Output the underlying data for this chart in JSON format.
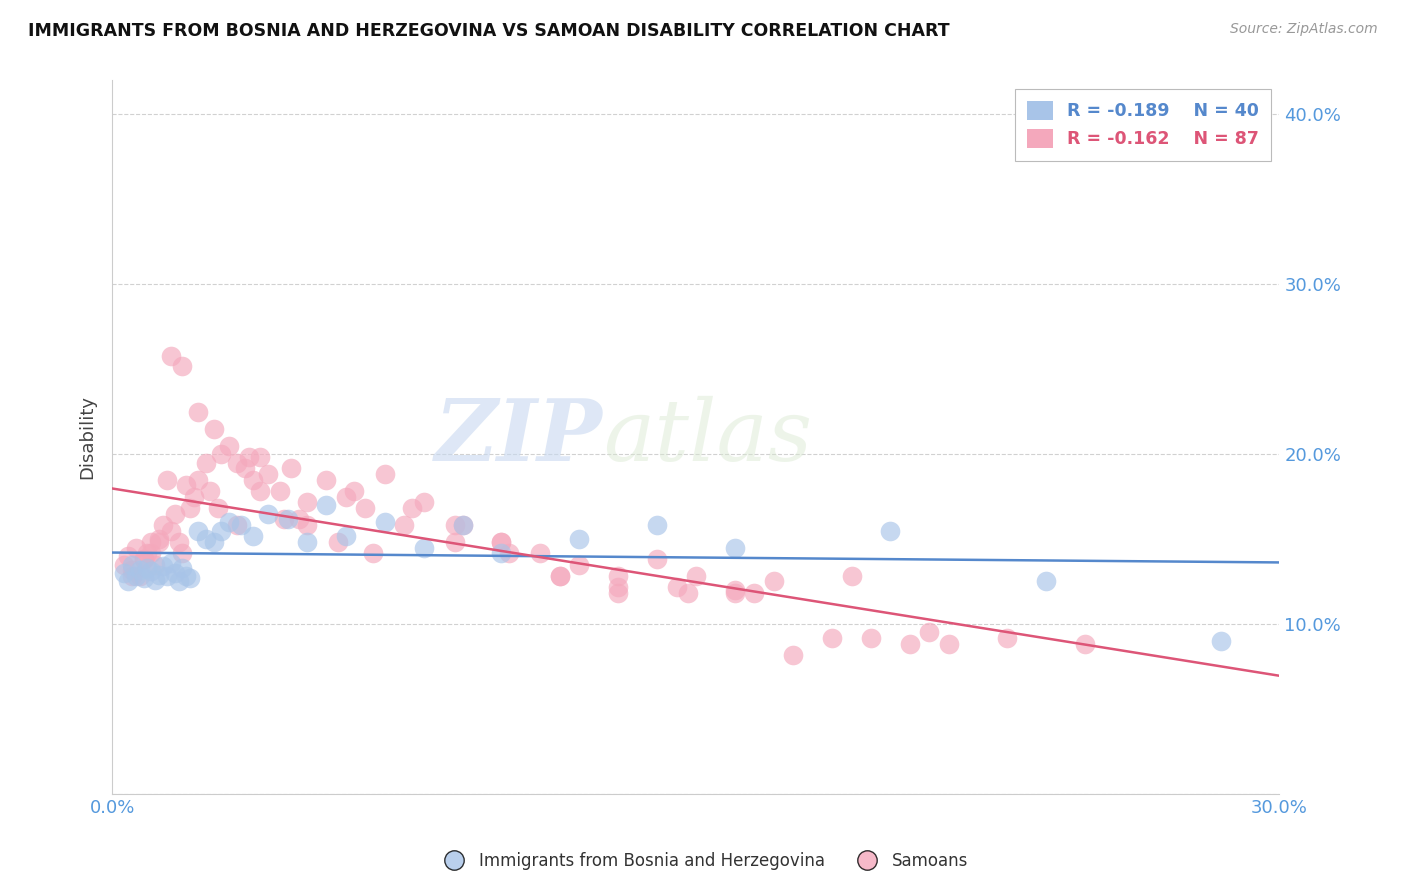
{
  "title": "IMMIGRANTS FROM BOSNIA AND HERZEGOVINA VS SAMOAN DISABILITY CORRELATION CHART",
  "source": "Source: ZipAtlas.com",
  "ylabel": "Disability",
  "xlim": [
    0.0,
    0.3
  ],
  "ylim": [
    0.0,
    0.42
  ],
  "watermark_zip": "ZIP",
  "watermark_atlas": "atlas",
  "legend_r1": "R = -0.189",
  "legend_n1": "N = 40",
  "legend_r2": "R = -0.162",
  "legend_n2": "N = 87",
  "legend_label1": "Immigrants from Bosnia and Herzegovina",
  "legend_label2": "Samoans",
  "blue_color": "#a8c4e8",
  "pink_color": "#f4a8bc",
  "blue_line_color": "#5588cc",
  "pink_line_color": "#dd5577",
  "axis_color": "#5599dd",
  "grid_color": "#cccccc",
  "title_color": "#111111",
  "source_color": "#999999",
  "blue_scatter_x": [
    0.003,
    0.004,
    0.005,
    0.006,
    0.007,
    0.008,
    0.009,
    0.01,
    0.011,
    0.012,
    0.013,
    0.014,
    0.015,
    0.016,
    0.017,
    0.018,
    0.019,
    0.02,
    0.022,
    0.024,
    0.026,
    0.028,
    0.03,
    0.033,
    0.036,
    0.04,
    0.045,
    0.05,
    0.055,
    0.06,
    0.07,
    0.08,
    0.09,
    0.1,
    0.12,
    0.14,
    0.16,
    0.2,
    0.24,
    0.285
  ],
  "blue_scatter_y": [
    0.13,
    0.125,
    0.135,
    0.128,
    0.132,
    0.127,
    0.133,
    0.131,
    0.126,
    0.129,
    0.134,
    0.128,
    0.136,
    0.13,
    0.125,
    0.133,
    0.128,
    0.127,
    0.155,
    0.15,
    0.148,
    0.155,
    0.16,
    0.158,
    0.152,
    0.165,
    0.162,
    0.148,
    0.17,
    0.152,
    0.16,
    0.145,
    0.158,
    0.142,
    0.15,
    0.158,
    0.145,
    0.155,
    0.125,
    0.09
  ],
  "pink_scatter_x": [
    0.003,
    0.004,
    0.005,
    0.006,
    0.007,
    0.008,
    0.009,
    0.01,
    0.011,
    0.012,
    0.013,
    0.014,
    0.015,
    0.016,
    0.017,
    0.018,
    0.019,
    0.02,
    0.021,
    0.022,
    0.024,
    0.026,
    0.028,
    0.03,
    0.032,
    0.034,
    0.036,
    0.038,
    0.04,
    0.043,
    0.046,
    0.05,
    0.055,
    0.06,
    0.065,
    0.07,
    0.08,
    0.09,
    0.1,
    0.11,
    0.12,
    0.13,
    0.14,
    0.15,
    0.16,
    0.17,
    0.19,
    0.21,
    0.23,
    0.25,
    0.005,
    0.008,
    0.01,
    0.012,
    0.015,
    0.018,
    0.022,
    0.027,
    0.032,
    0.038,
    0.044,
    0.05,
    0.058,
    0.067,
    0.077,
    0.088,
    0.1,
    0.115,
    0.13,
    0.148,
    0.165,
    0.185,
    0.205,
    0.025,
    0.035,
    0.048,
    0.062,
    0.075,
    0.088,
    0.102,
    0.115,
    0.13,
    0.145,
    0.16,
    0.175,
    0.195,
    0.215
  ],
  "pink_scatter_y": [
    0.135,
    0.14,
    0.132,
    0.145,
    0.128,
    0.138,
    0.142,
    0.148,
    0.135,
    0.15,
    0.158,
    0.185,
    0.155,
    0.165,
    0.148,
    0.142,
    0.182,
    0.168,
    0.175,
    0.185,
    0.195,
    0.215,
    0.2,
    0.205,
    0.195,
    0.192,
    0.185,
    0.198,
    0.188,
    0.178,
    0.192,
    0.172,
    0.185,
    0.175,
    0.168,
    0.188,
    0.172,
    0.158,
    0.148,
    0.142,
    0.135,
    0.128,
    0.138,
    0.128,
    0.12,
    0.125,
    0.128,
    0.095,
    0.092,
    0.088,
    0.128,
    0.138,
    0.142,
    0.148,
    0.258,
    0.252,
    0.225,
    0.168,
    0.158,
    0.178,
    0.162,
    0.158,
    0.148,
    0.142,
    0.168,
    0.158,
    0.148,
    0.128,
    0.118,
    0.118,
    0.118,
    0.092,
    0.088,
    0.178,
    0.198,
    0.162,
    0.178,
    0.158,
    0.148,
    0.142,
    0.128,
    0.122,
    0.122,
    0.118,
    0.082,
    0.092,
    0.088
  ]
}
